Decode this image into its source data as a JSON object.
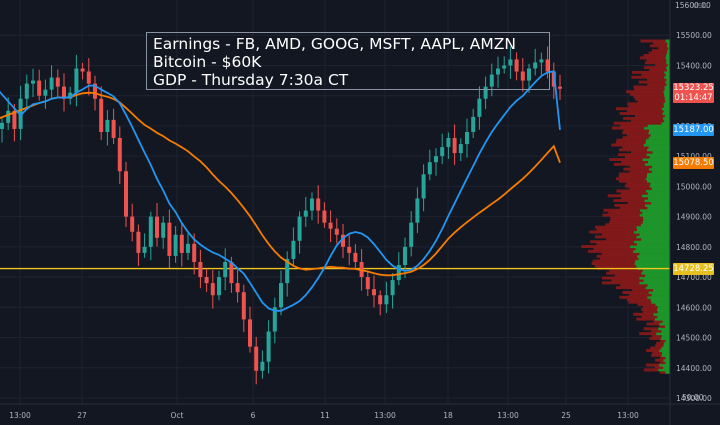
{
  "annotation": {
    "lines": [
      "Earnings - FB, AMD, GOOG, MSFT, AAPL, AMZN",
      "Bitcoin - $60K",
      "GDP - Thursday 7:30a CT"
    ]
  },
  "price_axis": {
    "currency": "USD",
    "ticks": [
      "15500.00",
      "15400.00",
      "15300.00",
      "15200.00",
      "15100.00",
      "15000.00",
      "14900.00",
      "14800.00",
      "14700.00",
      "14600.00",
      "14500.00",
      "14400.00",
      "14300.00"
    ],
    "extra_tick": "50.00",
    "top_tick": "15600.00"
  },
  "time_axis": {
    "ticks": [
      "13:00",
      "27",
      "Oct",
      "6",
      "11",
      "13:00",
      "18",
      "13:00",
      "25",
      "13:00"
    ]
  },
  "price_tags": [
    {
      "label": "15323.25",
      "sub": "01:14:47",
      "value": 15323.25,
      "color": "#ef5350"
    },
    {
      "label": "15187.00",
      "value": 15187.0,
      "color": "#2196f3"
    },
    {
      "label": "15078.50",
      "value": 15078.5,
      "color": "#f57c00"
    },
    {
      "label": "14728.25",
      "value": 14728.25,
      "color": "#e6c020"
    }
  ],
  "colors": {
    "up": "#26a69a",
    "down": "#ef5350",
    "ma_fast": "#2196f3",
    "ma_slow": "#f57c00",
    "level": "#f0c419",
    "profile_green": "#1e9a2a",
    "profile_red": "#8b1a1a"
  },
  "chart_data": {
    "type": "candlestick",
    "y_range": [
      14300,
      15600
    ],
    "horizontal_level": 14728.25,
    "close_series": [
      15210,
      15250,
      15190,
      15290,
      15340,
      15350,
      15300,
      15320,
      15360,
      15330,
      15290,
      15310,
      15390,
      15380,
      15340,
      15290,
      15180,
      15220,
      15160,
      15050,
      14900,
      14850,
      14780,
      14800,
      14900,
      14830,
      14880,
      14770,
      14840,
      14780,
      14810,
      14750,
      14700,
      14680,
      14640,
      14700,
      14750,
      14680,
      14650,
      14560,
      14470,
      14390,
      14420,
      14520,
      14600,
      14680,
      14760,
      14820,
      14900,
      14920,
      14960,
      14920,
      14880,
      14860,
      14840,
      14800,
      14780,
      14750,
      14700,
      14660,
      14640,
      14610,
      14640,
      14690,
      14740,
      14800,
      14880,
      14960,
      15040,
      15080,
      15100,
      15130,
      15160,
      15110,
      15140,
      15180,
      15230,
      15290,
      15330,
      15370,
      15390,
      15400,
      15420,
      15380,
      15350,
      15390,
      15410,
      15420,
      15380,
      15330,
      15323
    ],
    "ma_fast_start": 15330,
    "ma_fast_end": 15187,
    "ma_slow_start": 15220,
    "ma_slow_end": 15078.5,
    "volume_profile_range": [
      14380,
      15480
    ]
  }
}
